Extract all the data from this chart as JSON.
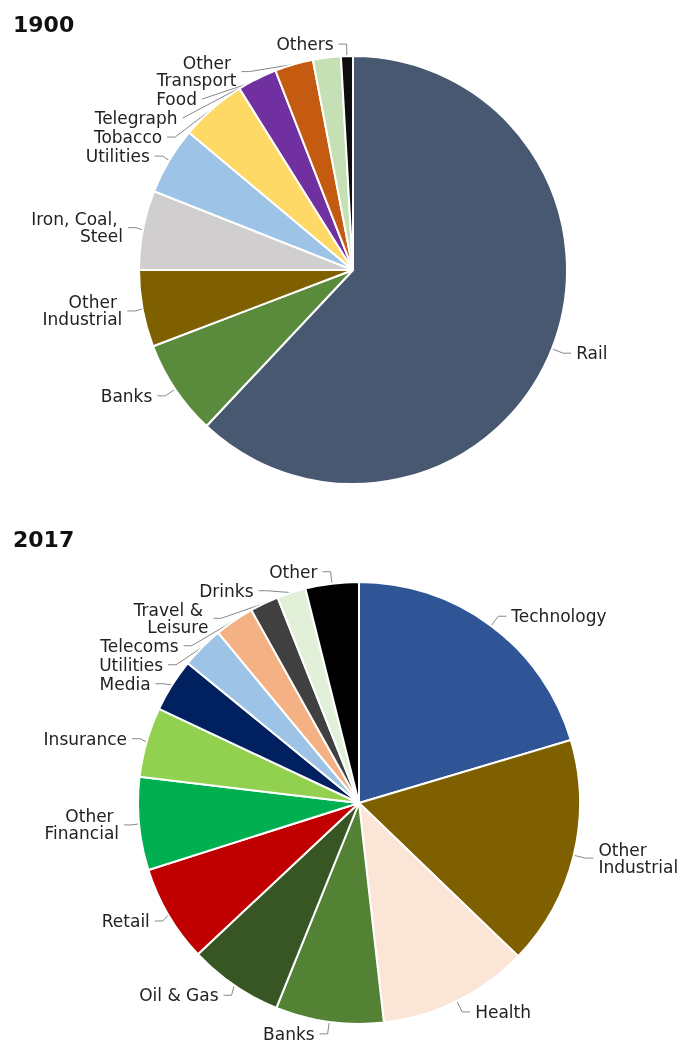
{
  "chart_data": [
    {
      "type": "pie",
      "title": "1900",
      "categories": [
        "Rail",
        "Banks",
        "Other Industrial",
        "Iron, Coal, Steel",
        "Utilities",
        "Tobacco",
        "Telegraph",
        "Other Transport",
        "Food",
        "Others"
      ],
      "values": [
        62,
        7.2,
        5.8,
        6.0,
        5.1,
        5.0,
        3.0,
        2.9,
        2.1,
        0.9
      ],
      "colors": [
        "#475870",
        "#5a8a3c",
        "#7f6000",
        "#d0cece",
        "#9dc3e6",
        "#ffd966",
        "#7030a0",
        "#c55a11",
        "#c5e0b4",
        "#0d0d0d"
      ],
      "legend": false
    },
    {
      "type": "pie",
      "title": "2017",
      "categories": [
        "Technology",
        "Other Industrial",
        "Health",
        "Banks",
        "Oil & Gas",
        "Retail",
        "Other Financial",
        "Insurance",
        "Media",
        "Utilities",
        "Telecoms",
        "Travel & Leisure",
        "Drinks",
        "Other"
      ],
      "values": [
        20.4,
        16.8,
        11.0,
        7.9,
        6.9,
        7.1,
        6.8,
        5.1,
        3.9,
        3.1,
        2.9,
        2.1,
        2.1,
        3.9
      ],
      "colors": [
        "#2f5597",
        "#7f6000",
        "#fbe5d6",
        "#548235",
        "#375623",
        "#c00000",
        "#00b050",
        "#92d050",
        "#002060",
        "#9dc3e6",
        "#f4b183",
        "#404040",
        "#e2f0d9",
        "#000000"
      ],
      "legend": false
    }
  ]
}
